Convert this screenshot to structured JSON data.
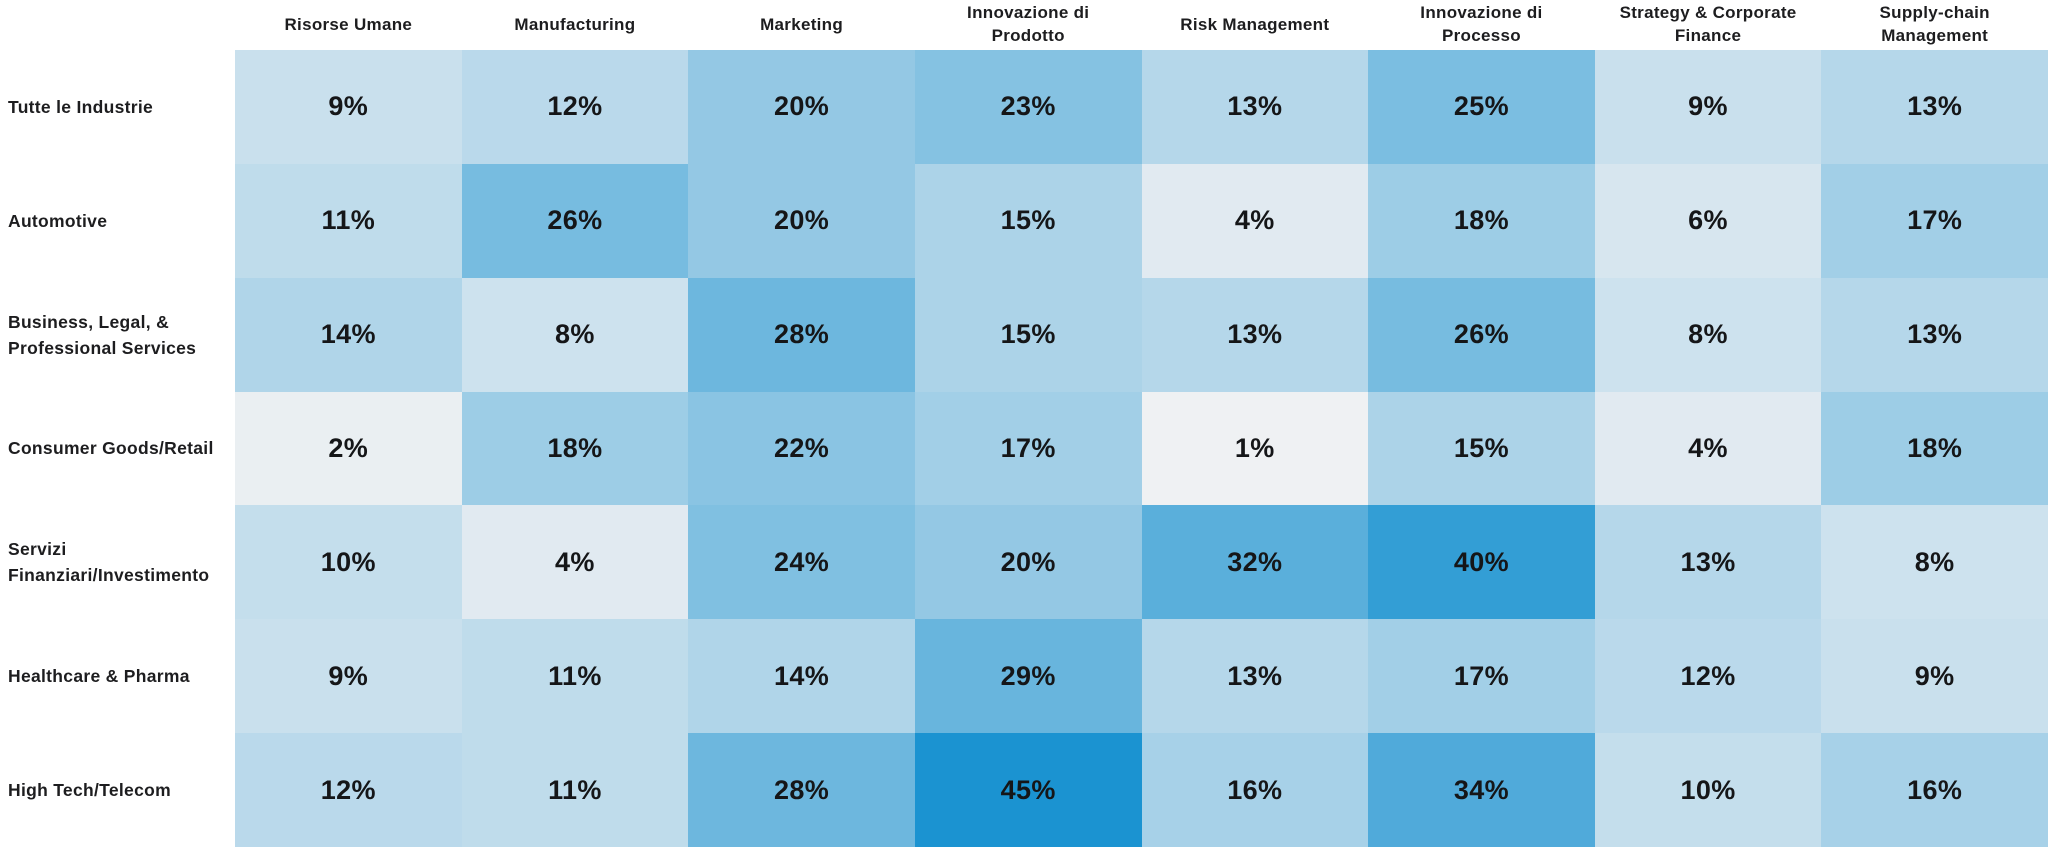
{
  "meta": {
    "background_color": "#ffffff",
    "ink_color": "#1d1d1f",
    "value_text_color": "#151618"
  },
  "chart_data": {
    "type": "heatmap",
    "title": "",
    "unit": "%",
    "legend": "none",
    "grid": "off",
    "columns": [
      "Risorse Umane",
      "Manufacturing",
      "Marketing",
      "Innovazione di\nProdotto",
      "Risk Management",
      "Innovazione di\nProcesso",
      "Strategy & Corporate\nFinance",
      "Supply-chain\nManagement"
    ],
    "rows": [
      "Tutte le Industrie",
      "Automotive",
      "Business, Legal, &\nProfessional Services",
      "Consumer Goods/Retail",
      "Servizi\nFinanziari/Investimento",
      "Healthcare & Pharma",
      "High Tech/Telecom"
    ],
    "values": [
      [
        9,
        12,
        20,
        23,
        13,
        25,
        9,
        13
      ],
      [
        11,
        26,
        20,
        15,
        4,
        18,
        6,
        17
      ],
      [
        14,
        8,
        28,
        15,
        13,
        26,
        8,
        13
      ],
      [
        2,
        18,
        22,
        17,
        1,
        15,
        4,
        18
      ],
      [
        10,
        4,
        24,
        20,
        32,
        40,
        13,
        8
      ],
      [
        9,
        11,
        14,
        29,
        13,
        17,
        12,
        9
      ],
      [
        12,
        11,
        28,
        45,
        16,
        34,
        10,
        16
      ]
    ],
    "color_scale": {
      "min_value": 0,
      "max_value": 45,
      "min_color": "#f4f3f4",
      "max_color": "#1b93d1"
    }
  }
}
